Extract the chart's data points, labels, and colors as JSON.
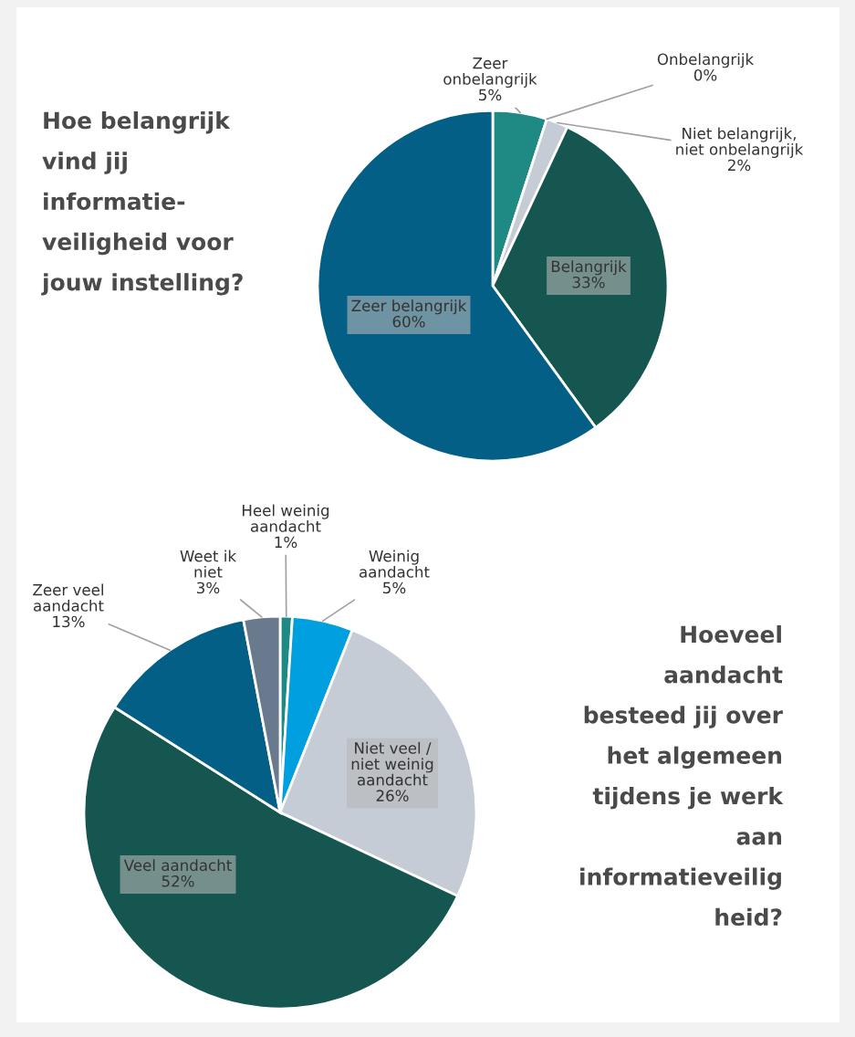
{
  "chart_data": [
    {
      "type": "pie",
      "title": "Hoe belangrijk\nvind jij\ninformatie-\nveiligheid voor\njouw instelling?",
      "categories": [
        "Zeer\nonbelangrijk",
        "Onbelangrijk",
        "Niet belangrijk,\nniet onbelangrijk",
        "Belangrijk",
        "Zeer belangrijk"
      ],
      "values": [
        5,
        0,
        2,
        33,
        60
      ],
      "value_labels": [
        "5%",
        "0%",
        "2%",
        "33%",
        "60%"
      ],
      "colors": [
        "#1f8a84",
        "#8a9aa9",
        "#c5ccd6",
        "#155651",
        "#035f85"
      ]
    },
    {
      "type": "pie",
      "title": "Hoeveel\naandacht\nbesteed jij over\nhet algemeen\ntijdens je werk\naan\ninformatieveilig\nheid?",
      "categories": [
        "Heel weinig\naandacht",
        "Weinig\naandacht",
        "Niet veel /\nniet weinig\naandacht",
        "Veel aandacht",
        "Zeer veel\naandacht",
        "Weet ik\nniet"
      ],
      "values": [
        1,
        5,
        26,
        52,
        13,
        3
      ],
      "value_labels": [
        "1%",
        "5%",
        "26%",
        "52%",
        "13%",
        "3%"
      ],
      "colors": [
        "#1f8a84",
        "#00a0e0",
        "#c5ccd6",
        "#155651",
        "#035f85",
        "#697a8e"
      ]
    }
  ]
}
